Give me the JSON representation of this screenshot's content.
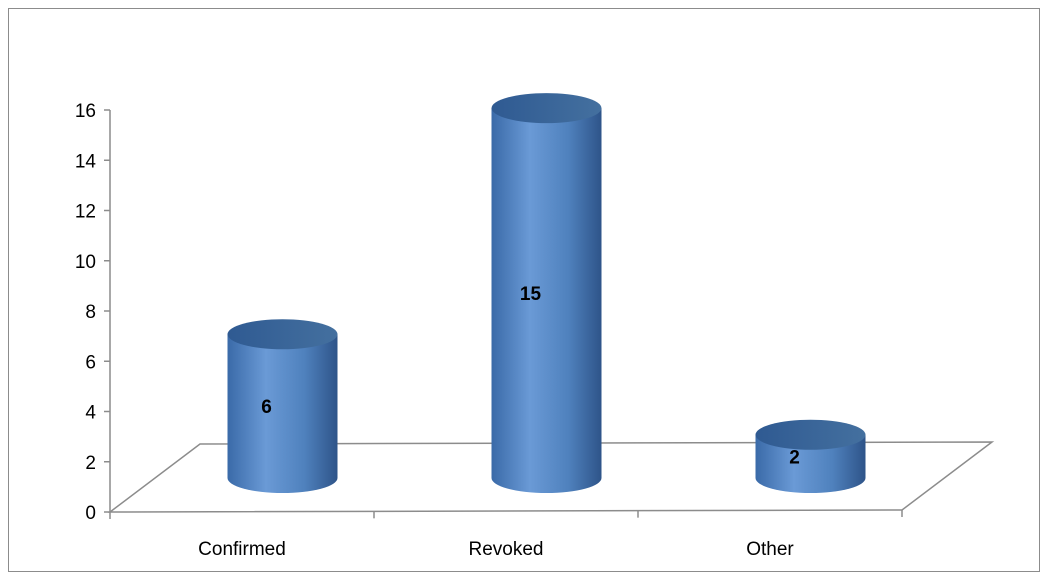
{
  "chart_data": {
    "type": "bar",
    "style": "3d-cylinder",
    "categories": [
      "Confirmed",
      "Revoked",
      "Other"
    ],
    "values": [
      6,
      15,
      2
    ],
    "data_labels": [
      "6",
      "15",
      "2"
    ],
    "title": "",
    "xlabel": "",
    "ylabel": "",
    "ylim": [
      0,
      16
    ],
    "yticks": [
      0,
      2,
      4,
      6,
      8,
      10,
      12,
      14,
      16
    ],
    "ytick_labels": [
      "0",
      "2",
      "4",
      "6",
      "8",
      "10",
      "12",
      "14",
      "16"
    ],
    "grid": false,
    "legend": "none",
    "colors": {
      "bar_light": "#6a9ad6",
      "bar_mid": "#4f81bd",
      "bar_dark": "#2e5489",
      "bar_top": "#3b6aa8",
      "axis": "#8c8c8c"
    }
  }
}
